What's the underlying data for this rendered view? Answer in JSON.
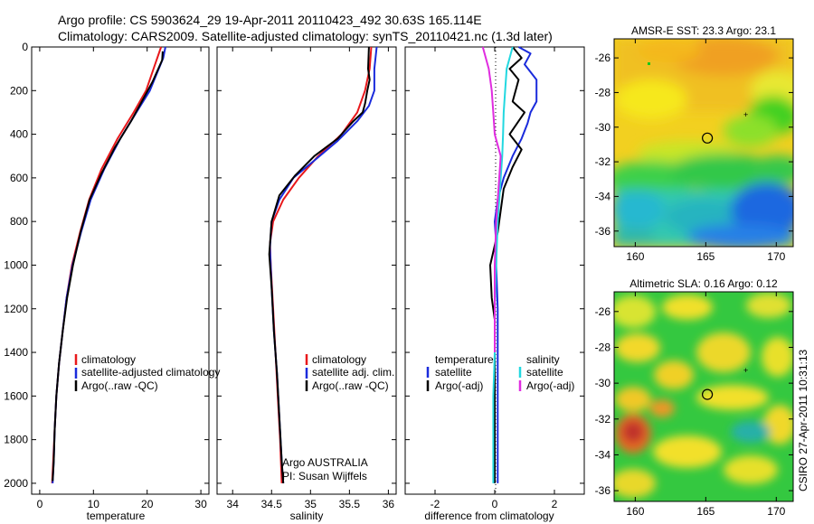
{
  "header": {
    "line1": "Argo profile: CS 5903624_29 19-Apr-2011 20110423_492 30.63S 165.114E",
    "line2": "Climatology: CARS2009. Satellite-adjusted climatology: synTS_20110421.nc (1.3d later)"
  },
  "colors": {
    "climatology": "#e8181b",
    "satellite": "#1a2bdc",
    "argo": "#000000",
    "sat_salinity": "#22d8e0",
    "argo_salinity": "#e02ce0"
  },
  "chart_data": [
    {
      "id": "temperature",
      "type": "line",
      "xlabel": "temperature",
      "ylabel": "",
      "xlim": [
        -1.5,
        31.5
      ],
      "ylim": [
        2050,
        0
      ],
      "xticks": [
        0,
        10,
        20,
        30
      ],
      "yticks": [
        0,
        200,
        400,
        600,
        800,
        1000,
        1200,
        1400,
        1600,
        1800,
        2000
      ],
      "legend": [
        "climatology",
        "satellite-adjusted climatology",
        "Argo(..raw -QC)"
      ],
      "series": [
        {
          "name": "climatology",
          "color": "climatology",
          "x": [
            22.6,
            21.2,
            19.8,
            17.5,
            14.5,
            11.5,
            9.2,
            7.5,
            6.0,
            5.0,
            4.3,
            3.6,
            3.1,
            2.8,
            2.5,
            2.3
          ],
          "y": [
            0,
            100,
            200,
            300,
            420,
            560,
            700,
            850,
            1000,
            1150,
            1300,
            1450,
            1600,
            1750,
            1900,
            2000
          ]
        },
        {
          "name": "satellite-adjusted climatology",
          "color": "satellite",
          "x": [
            23.4,
            23.0,
            20.5,
            18.0,
            15.0,
            12.0,
            9.5,
            7.7,
            6.1,
            5.0,
            4.3,
            3.6,
            3.1,
            2.8,
            2.6,
            2.4
          ],
          "y": [
            0,
            50,
            200,
            300,
            420,
            560,
            700,
            850,
            1000,
            1150,
            1300,
            1450,
            1600,
            1750,
            1900,
            2000
          ]
        },
        {
          "name": "Argo(..raw -QC)",
          "color": "argo",
          "x": [
            22.9,
            22.8,
            21.0,
            19.0,
            17.0,
            14.0,
            11.5,
            9.3,
            7.6,
            6.2,
            5.1,
            4.3,
            3.6,
            3.1,
            2.8,
            2.6,
            2.4
          ],
          "y": [
            20,
            60,
            160,
            250,
            340,
            460,
            580,
            700,
            850,
            1000,
            1150,
            1300,
            1450,
            1600,
            1750,
            1900,
            1990
          ]
        }
      ]
    },
    {
      "id": "salinity",
      "type": "line",
      "xlabel": "salinity",
      "ylabel": "",
      "xlim": [
        33.8,
        36.1
      ],
      "ylim": [
        2050,
        0
      ],
      "xticks": [
        34,
        34.5,
        35,
        35.5,
        36
      ],
      "legend": [
        "climatology",
        "satellite adj. clim.",
        "Argo(..raw -QC)"
      ],
      "annotation": [
        "Argo AUSTRALIA",
        "PI: Susan Wijffels"
      ],
      "series": [
        {
          "name": "climatology",
          "color": "climatology",
          "x": [
            35.78,
            35.76,
            35.7,
            35.6,
            35.4,
            35.1,
            34.85,
            34.65,
            34.52,
            34.48,
            34.49,
            34.52,
            34.55,
            34.58,
            34.61,
            34.63
          ],
          "y": [
            0,
            100,
            200,
            300,
            400,
            500,
            600,
            700,
            800,
            900,
            1000,
            1200,
            1400,
            1600,
            1800,
            2000
          ]
        },
        {
          "name": "satellite adj. clim.",
          "color": "satellite",
          "x": [
            35.85,
            35.82,
            35.82,
            35.75,
            35.6,
            35.35,
            35.05,
            34.78,
            34.6,
            34.5,
            34.48,
            34.5,
            34.53,
            34.57,
            34.6,
            34.63,
            34.65
          ],
          "y": [
            0,
            100,
            200,
            270,
            340,
            430,
            520,
            600,
            700,
            800,
            920,
            1100,
            1300,
            1500,
            1700,
            1900,
            2000
          ]
        },
        {
          "name": "Argo(..raw -QC)",
          "color": "argo",
          "x": [
            35.75,
            35.74,
            35.76,
            35.73,
            35.7,
            35.67,
            35.55,
            35.35,
            35.05,
            34.8,
            34.6,
            34.5,
            34.47,
            34.5,
            34.53,
            34.57,
            34.6,
            34.63,
            34.65
          ],
          "y": [
            0,
            100,
            150,
            200,
            260,
            300,
            340,
            420,
            500,
            590,
            680,
            800,
            950,
            1100,
            1300,
            1500,
            1700,
            1900,
            2000
          ]
        }
      ]
    },
    {
      "id": "difference",
      "type": "line",
      "xlabel": "difference from climatology",
      "ylabel": "",
      "xlim": [
        -3,
        3
      ],
      "ylim": [
        2050,
        0
      ],
      "xticks": [
        -2,
        0,
        2
      ],
      "legend_groups": [
        {
          "title": "temperature",
          "items": [
            "satellite",
            "Argo(-adj)"
          ]
        },
        {
          "title": "salinity",
          "items": [
            "satellite",
            "Argo(-adj)"
          ]
        }
      ],
      "series": [
        {
          "name": "temperature satellite",
          "color": "satellite",
          "x": [
            0.8,
            1.2,
            1.0,
            1.4,
            1.4,
            1.2,
            1.1,
            0.9,
            0.6,
            0.3,
            0.1,
            0.0,
            0.05,
            0.05,
            0.1,
            0.1,
            0.1,
            0.1,
            0.1
          ],
          "y": [
            0,
            30,
            80,
            150,
            250,
            300,
            350,
            420,
            500,
            600,
            700,
            800,
            900,
            1000,
            1200,
            1400,
            1600,
            1800,
            2000
          ]
        },
        {
          "name": "temperature Argo(-adj)",
          "color": "argo",
          "x": [
            0.6,
            0.9,
            0.5,
            0.8,
            0.6,
            1.0,
            0.5,
            0.9,
            0.6,
            0.3,
            0.2,
            0.1,
            -0.15,
            -0.1,
            0.0,
            0.0,
            0.0,
            0.0,
            0.0
          ],
          "y": [
            0,
            50,
            100,
            150,
            250,
            300,
            400,
            470,
            550,
            650,
            750,
            850,
            1000,
            1150,
            1250,
            1400,
            1600,
            1800,
            2000
          ]
        },
        {
          "name": "salinity satellite",
          "color": "sat_salinity",
          "x": [
            0.6,
            0.4,
            0.35,
            0.3,
            0.28,
            0.25,
            0.2,
            0.15,
            0.1,
            0.05,
            0.0,
            0.0,
            -0.05,
            -0.05,
            -0.05
          ],
          "y": [
            0,
            100,
            200,
            300,
            400,
            500,
            600,
            700,
            800,
            1000,
            1200,
            1400,
            1600,
            1800,
            2000
          ]
        },
        {
          "name": "salinity Argo(-adj)",
          "color": "argo_salinity",
          "x": [
            -0.4,
            -0.2,
            -0.1,
            -0.05,
            0.0,
            0.1,
            0.2,
            0.15,
            0.1,
            0.05,
            0.0,
            0.0,
            0.0
          ],
          "y": [
            0,
            100,
            200,
            300,
            400,
            450,
            500,
            600,
            700,
            800,
            1000,
            1200,
            1400
          ]
        }
      ]
    },
    {
      "id": "sst_map",
      "type": "heatmap",
      "title": "AMSR-E SST: 23.3 Argo: 23.1",
      "xlim": [
        158.5,
        171.2
      ],
      "ylim": [
        -36.9,
        -24.9
      ],
      "xticks": [
        160,
        165,
        170
      ],
      "yticks": [
        -26,
        -28,
        -30,
        -32,
        -34,
        -36
      ],
      "float_position": [
        165.114,
        -30.63
      ]
    },
    {
      "id": "sla_map",
      "type": "heatmap",
      "title": "Altimetric SLA: 0.16 Argo: 0.12",
      "xlim": [
        158.5,
        171.2
      ],
      "ylim": [
        -36.6,
        -24.9
      ],
      "xticks": [
        160,
        165,
        170
      ],
      "yticks": [
        -26,
        -28,
        -30,
        -32,
        -34,
        -36
      ],
      "float_position": [
        165.114,
        -30.63
      ]
    }
  ],
  "footer": {
    "stamp": "CSIRO 27-Apr-2011 10:31:13"
  }
}
